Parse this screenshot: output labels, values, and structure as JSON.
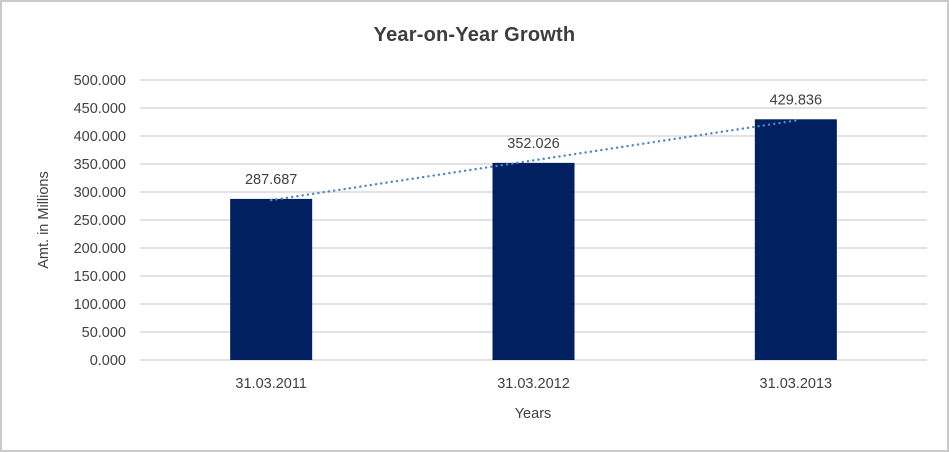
{
  "window": {
    "background": "#ffffff",
    "border_color": "#c9c9c9"
  },
  "chart_data": {
    "type": "bar",
    "title": "Year-on-Year Growth",
    "xlabel": "Years",
    "ylabel": "Amt. in Millions",
    "categories": [
      "31.03.2011",
      "31.03.2012",
      "31.03.2013"
    ],
    "values": [
      287.687,
      352.026,
      429.836
    ],
    "data_labels": [
      "287.687",
      "352.026",
      "429.836"
    ],
    "ylim": [
      0,
      500
    ],
    "ytick_step": 50,
    "ytick_labels": [
      "500.000",
      "450.000",
      "400.000",
      "350.000",
      "300.000",
      "250.000",
      "200.000",
      "150.000",
      "100.000",
      "50.000",
      "0.000"
    ],
    "grid": true,
    "legend": "none",
    "trendline": {
      "type": "linear",
      "style": "dotted"
    },
    "colors": {
      "bar": "#002060",
      "trendline": "#4f86c7",
      "gridline": "#d9d9d9",
      "text": "#404040",
      "title": "#3d3d3d"
    }
  }
}
